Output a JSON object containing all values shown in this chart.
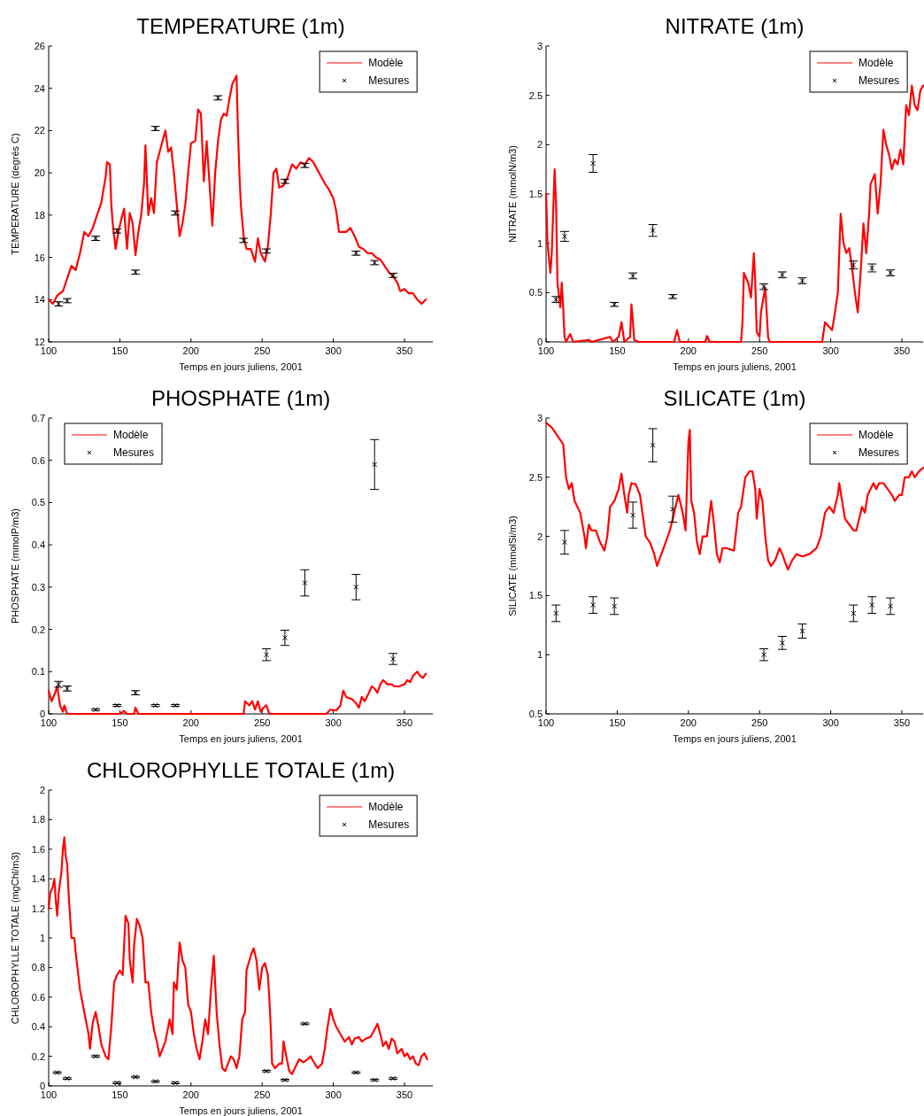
{
  "chart_data": [
    {
      "type": "line",
      "title": "TEMPERATURE (1m)",
      "xlabel": "Temps en jours juliens, 2001",
      "ylabel": "TEMPERATURE (degrés C)",
      "xlim": [
        100,
        370
      ],
      "xticks": [
        100,
        150,
        200,
        250,
        300,
        350
      ],
      "ylim": [
        12,
        26
      ],
      "yticks": [
        12,
        14,
        16,
        18,
        20,
        22,
        24,
        26
      ],
      "legend": "top right",
      "series": [
        {
          "name": "Modèle",
          "type": "line",
          "color": "#ff0000",
          "x": [
            100,
            103,
            106,
            110,
            113,
            116,
            119,
            122,
            125,
            128,
            131,
            134,
            137,
            140,
            141,
            143,
            144,
            145,
            147,
            149,
            151,
            153,
            155,
            157,
            159,
            161,
            163,
            165,
            167,
            168,
            170,
            172,
            174,
            176,
            178,
            180,
            182,
            184,
            186,
            188,
            190,
            192,
            194,
            196,
            198,
            200,
            203,
            205,
            207,
            209,
            211,
            213,
            215,
            217,
            219,
            221,
            223,
            225,
            227,
            229,
            232,
            233,
            234,
            235,
            237,
            239,
            242,
            245,
            247,
            249,
            252,
            254,
            256,
            258,
            260,
            262,
            265,
            268,
            271,
            274,
            277,
            280,
            283,
            286,
            290,
            294,
            297,
            300,
            302,
            304,
            306,
            309,
            312,
            315,
            318,
            321,
            324,
            327,
            330,
            333,
            336,
            339,
            342,
            345,
            347,
            350,
            353,
            356,
            359,
            362,
            365
          ],
          "values": [
            14.0,
            13.8,
            14.2,
            14.4,
            15.0,
            15.6,
            15.4,
            16.2,
            17.2,
            17.0,
            17.4,
            18.0,
            18.6,
            19.8,
            20.5,
            20.4,
            18.5,
            17.6,
            16.4,
            17.2,
            17.8,
            18.3,
            16.4,
            18.1,
            17.6,
            16.1,
            17.2,
            18.0,
            19.5,
            21.3,
            18.0,
            18.8,
            18.1,
            20.5,
            21.0,
            21.5,
            22.0,
            21.0,
            21.2,
            20.0,
            18.5,
            17.0,
            17.6,
            18.5,
            20.0,
            21.4,
            21.5,
            23.0,
            22.8,
            19.6,
            21.5,
            19.5,
            17.5,
            20.0,
            21.5,
            22.5,
            22.8,
            22.7,
            23.5,
            24.2,
            24.6,
            22.0,
            20.0,
            18.5,
            17.0,
            16.4,
            16.4,
            15.8,
            16.9,
            16.2,
            15.8,
            16.5,
            18.0,
            20.0,
            20.2,
            19.3,
            19.4,
            19.8,
            20.4,
            20.2,
            20.5,
            20.4,
            20.7,
            20.5,
            20.0,
            19.5,
            19.2,
            18.8,
            18.2,
            17.2,
            17.2,
            17.2,
            17.4,
            17.0,
            16.5,
            16.4,
            16.2,
            16.2,
            16.0,
            15.9,
            15.6,
            15.3,
            15.1,
            14.8,
            14.4,
            14.5,
            14.3,
            14.3,
            14.0,
            13.8,
            14.0
          ]
        },
        {
          "name": "Mesures",
          "type": "scatter",
          "marker": "cross",
          "color": "#000000",
          "x": [
            107,
            113,
            133,
            148,
            161,
            175,
            189,
            219,
            237,
            253,
            266,
            280,
            316,
            329,
            342
          ],
          "values": [
            13.8,
            13.95,
            16.9,
            17.25,
            15.3,
            22.1,
            18.1,
            23.55,
            16.8,
            16.3,
            19.6,
            20.35,
            16.2,
            15.75,
            15.15
          ],
          "errors": [
            0.1,
            0.1,
            0.1,
            0.1,
            0.1,
            0.1,
            0.1,
            0.1,
            0.1,
            0.1,
            0.1,
            0.1,
            0.1,
            0.1,
            0.1
          ]
        }
      ]
    },
    {
      "type": "line",
      "title": "NITRATE (1m)",
      "xlabel": "Temps en jours juliens, 2001",
      "ylabel": "NITRATE (mmolN/m3)",
      "xlim": [
        100,
        365
      ],
      "xticks": [
        100,
        150,
        200,
        250,
        300,
        350
      ],
      "ylim": [
        0,
        3
      ],
      "yticks": [
        0,
        0.5,
        1,
        1.5,
        2,
        2.5,
        3
      ],
      "legend": "top right",
      "series": [
        {
          "name": "Modèle",
          "type": "line",
          "color": "#ff0000",
          "x": [
            100,
            101,
            103,
            104,
            106,
            107,
            108,
            110,
            111,
            112,
            113,
            114,
            117,
            119,
            130,
            132,
            145,
            147,
            151,
            153,
            155,
            159,
            160,
            162,
            165,
            190,
            192,
            194,
            212,
            213,
            215,
            237,
            238,
            239,
            242,
            244,
            246,
            247,
            248,
            250,
            251,
            254,
            256,
            257,
            294,
            296,
            299,
            301,
            303,
            305,
            307,
            309,
            311,
            313,
            315,
            317,
            319,
            321,
            323,
            325,
            327,
            328,
            331,
            333,
            335,
            337,
            339,
            341,
            343,
            345,
            347,
            349,
            351,
            353,
            355,
            357,
            359,
            361,
            363,
            365
          ],
          "values": [
            1.5,
            1.0,
            0.7,
            0.9,
            1.75,
            1.4,
            0.6,
            0.35,
            0.6,
            0.35,
            0.05,
            0,
            0.08,
            0,
            0.02,
            0,
            0.05,
            0,
            0.05,
            0.2,
            0,
            0.05,
            0.38,
            0.02,
            0,
            0,
            0.12,
            0,
            0,
            0.06,
            0,
            0,
            0.2,
            0.7,
            0.6,
            0.45,
            0.9,
            0.6,
            0.1,
            0.05,
            0.3,
            0.55,
            0.05,
            0,
            0,
            0.2,
            0.15,
            0.12,
            0.3,
            0.5,
            1.3,
            1.0,
            0.9,
            0.95,
            0.75,
            0.5,
            0.3,
            0.7,
            1.2,
            0.9,
            1.3,
            1.6,
            1.7,
            1.3,
            1.6,
            2.15,
            2.0,
            1.9,
            1.75,
            1.85,
            1.8,
            1.95,
            1.8,
            2.4,
            2.3,
            2.6,
            2.4,
            2.35,
            2.55,
            2.6
          ]
        },
        {
          "name": "Mesures",
          "type": "scatter",
          "marker": "cross",
          "color": "#000000",
          "x": [
            107,
            113,
            133,
            148,
            161,
            175,
            189,
            253,
            266,
            280,
            316,
            329,
            342
          ],
          "values": [
            0.43,
            1.07,
            1.81,
            0.38,
            0.67,
            1.13,
            0.46,
            0.56,
            0.68,
            0.62,
            0.78,
            0.75,
            0.7
          ],
          "errors": [
            0.03,
            0.05,
            0.09,
            0.02,
            0.03,
            0.06,
            0.02,
            0.03,
            0.03,
            0.03,
            0.04,
            0.04,
            0.03
          ]
        }
      ]
    },
    {
      "type": "line",
      "title": "PHOSPHATE (1m)",
      "xlabel": "Temps en jours juliens, 2001",
      "ylabel": "PHOSPHATE (mmolP/m3)",
      "xlim": [
        100,
        370
      ],
      "xticks": [
        100,
        150,
        200,
        250,
        300,
        350
      ],
      "ylim": [
        0,
        0.7
      ],
      "yticks": [
        0,
        0.1,
        0.2,
        0.3,
        0.4,
        0.5,
        0.6,
        0.7
      ],
      "legend": "top left",
      "series": [
        {
          "name": "Modèle",
          "type": "line",
          "color": "#ff0000",
          "x": [
            100,
            102,
            104,
            106,
            108,
            110,
            111,
            113,
            150,
            153,
            155,
            160,
            161,
            163,
            237,
            238,
            241,
            243,
            245,
            247,
            249,
            251,
            253,
            255,
            295,
            298,
            302,
            305,
            307,
            309,
            313,
            316,
            318,
            320,
            322,
            325,
            327,
            329,
            331,
            333,
            335,
            338,
            341,
            343,
            346,
            350,
            352,
            354,
            356,
            359,
            361,
            363,
            365
          ],
          "values": [
            0.055,
            0.03,
            0.045,
            0.065,
            0.02,
            0.005,
            0.02,
            0,
            0,
            0.007,
            0,
            0,
            0.015,
            0,
            0,
            0.03,
            0.02,
            0.03,
            0.01,
            0.03,
            0.005,
            0.015,
            0.02,
            0,
            0,
            0.01,
            0.008,
            0.02,
            0.055,
            0.04,
            0.035,
            0.025,
            0.015,
            0.04,
            0.03,
            0.05,
            0.065,
            0.06,
            0.05,
            0.07,
            0.08,
            0.07,
            0.07,
            0.065,
            0.065,
            0.07,
            0.08,
            0.075,
            0.09,
            0.1,
            0.09,
            0.085,
            0.095
          ]
        },
        {
          "name": "Mesures",
          "type": "scatter",
          "marker": "cross",
          "color": "#000000",
          "x": [
            107,
            113,
            133,
            148,
            161,
            175,
            189,
            253,
            266,
            280,
            316,
            329,
            342
          ],
          "values": [
            0.07,
            0.06,
            0.01,
            0.02,
            0.05,
            0.02,
            0.02,
            0.14,
            0.18,
            0.31,
            0.3,
            0.59,
            0.13
          ],
          "errors": [
            0.007,
            0.006,
            0.002,
            0.002,
            0.005,
            0.002,
            0.002,
            0.014,
            0.018,
            0.031,
            0.03,
            0.059,
            0.013
          ]
        }
      ]
    },
    {
      "type": "line",
      "title": "SILICATE (1m)",
      "xlabel": "Temps en jours juliens, 2001",
      "ylabel": "SILICATE (mmolSi/m3)",
      "xlim": [
        100,
        365
      ],
      "xticks": [
        100,
        150,
        200,
        250,
        300,
        350
      ],
      "ylim": [
        0.5,
        3
      ],
      "yticks": [
        0.5,
        1,
        1.5,
        2,
        2.5,
        3
      ],
      "legend": "top right",
      "series": [
        {
          "name": "Modèle",
          "type": "line",
          "color": "#ff0000",
          "x": [
            100,
            104,
            108,
            112,
            114,
            116,
            118,
            120,
            124,
            127,
            128,
            130,
            132,
            135,
            138,
            141,
            143,
            145,
            148,
            151,
            153,
            155,
            157,
            158,
            160,
            163,
            166,
            170,
            173,
            176,
            178,
            181,
            184,
            187,
            190,
            193,
            196,
            198,
            200,
            201,
            202,
            204,
            206,
            208,
            210,
            213,
            216,
            218,
            220,
            222,
            224,
            227,
            232,
            235,
            237,
            240,
            243,
            245,
            247,
            248,
            250,
            252,
            254,
            256,
            258,
            261,
            264,
            266,
            268,
            270,
            273,
            276,
            280,
            285,
            290,
            293,
            296,
            299,
            302,
            305,
            306,
            308,
            310,
            313,
            316,
            318,
            320,
            322,
            324,
            326,
            328,
            330,
            332,
            334,
            337,
            340,
            343,
            345,
            348,
            350,
            352,
            355,
            357,
            359,
            362,
            365
          ],
          "values": [
            2.96,
            2.92,
            2.85,
            2.78,
            2.5,
            2.4,
            2.45,
            2.3,
            2.2,
            2.0,
            1.9,
            2.1,
            2.05,
            2.05,
            1.95,
            1.88,
            2.0,
            2.25,
            2.3,
            2.4,
            2.53,
            2.35,
            2.2,
            2.35,
            2.45,
            2.44,
            2.35,
            2.0,
            1.95,
            1.85,
            1.75,
            1.85,
            1.95,
            2.05,
            2.2,
            2.35,
            2.2,
            2.05,
            2.8,
            2.9,
            2.3,
            2.2,
            1.95,
            1.85,
            2.0,
            2.0,
            2.3,
            2.1,
            1.85,
            1.78,
            1.9,
            1.9,
            1.88,
            2.2,
            2.25,
            2.5,
            2.55,
            2.55,
            2.4,
            2.15,
            2.4,
            2.3,
            2.0,
            1.8,
            1.75,
            1.8,
            1.9,
            1.85,
            1.78,
            1.72,
            1.8,
            1.85,
            1.83,
            1.85,
            1.9,
            2.0,
            2.2,
            2.25,
            2.2,
            2.35,
            2.45,
            2.3,
            2.15,
            2.1,
            2.05,
            2.05,
            2.15,
            2.25,
            2.2,
            2.35,
            2.4,
            2.45,
            2.4,
            2.45,
            2.45,
            2.4,
            2.35,
            2.3,
            2.35,
            2.35,
            2.5,
            2.5,
            2.55,
            2.5,
            2.55,
            2.58
          ]
        },
        {
          "name": "Mesures",
          "type": "scatter",
          "marker": "cross",
          "color": "#000000",
          "x": [
            107,
            113,
            133,
            148,
            161,
            175,
            189,
            253,
            266,
            280,
            316,
            329,
            342
          ],
          "values": [
            1.35,
            1.95,
            1.42,
            1.41,
            2.18,
            2.77,
            2.23,
            1.0,
            1.1,
            1.2,
            1.35,
            1.42,
            1.41
          ],
          "errors": [
            0.07,
            0.1,
            0.07,
            0.07,
            0.11,
            0.14,
            0.11,
            0.05,
            0.055,
            0.06,
            0.07,
            0.07,
            0.07
          ]
        }
      ]
    },
    {
      "type": "line",
      "title": "CHLOROPHYLLE TOTALE (1m)",
      "xlabel": "Temps en jours juliens, 2001",
      "ylabel": "CHLOROPHYLLE TOTALE (mgChl/m3)",
      "xlim": [
        100,
        370
      ],
      "xticks": [
        100,
        150,
        200,
        250,
        300,
        350
      ],
      "ylim": [
        0,
        2
      ],
      "yticks": [
        0,
        0.2,
        0.4,
        0.6,
        0.8,
        1,
        1.2,
        1.4,
        1.6,
        1.8,
        2
      ],
      "legend": "top right",
      "series": [
        {
          "name": "Modèle",
          "type": "line",
          "color": "#ff0000",
          "x": [
            100,
            101,
            103,
            104,
            105,
            106,
            107,
            109,
            110,
            111,
            112,
            113,
            114,
            116,
            118,
            119,
            122,
            125,
            128,
            129,
            131,
            133,
            135,
            137,
            140,
            142,
            144,
            146,
            148,
            150,
            152,
            154,
            156,
            157,
            159,
            160,
            162,
            164,
            166,
            168,
            170,
            172,
            174,
            176,
            178,
            180,
            182,
            185,
            187,
            188,
            190,
            192,
            194,
            196,
            198,
            200,
            202,
            204,
            206,
            208,
            210,
            212,
            214,
            216,
            218,
            220,
            222,
            224,
            226,
            228,
            230,
            232,
            234,
            236,
            238,
            239,
            242,
            244,
            246,
            248,
            250,
            252,
            254,
            255,
            256,
            257,
            259,
            262,
            264,
            265,
            267,
            269,
            271,
            273,
            276,
            279,
            282,
            284,
            287,
            289,
            292,
            294,
            296,
            298,
            300,
            302,
            305,
            308,
            311,
            313,
            315,
            318,
            320,
            323,
            326,
            329,
            331,
            333,
            335,
            337,
            339,
            341,
            343,
            345,
            348,
            350,
            352,
            354,
            356,
            358,
            360,
            362,
            364,
            366
          ],
          "values": [
            1.2,
            1.3,
            1.35,
            1.4,
            1.25,
            1.15,
            1.3,
            1.45,
            1.6,
            1.68,
            1.55,
            1.5,
            1.3,
            1.0,
            1.0,
            0.9,
            0.65,
            0.5,
            0.35,
            0.25,
            0.43,
            0.5,
            0.4,
            0.28,
            0.2,
            0.18,
            0.4,
            0.7,
            0.75,
            0.78,
            0.75,
            1.15,
            1.1,
            0.85,
            0.7,
            0.95,
            1.13,
            1.08,
            1.0,
            0.7,
            0.7,
            0.5,
            0.38,
            0.3,
            0.2,
            0.25,
            0.3,
            0.45,
            0.35,
            0.7,
            0.65,
            0.97,
            0.85,
            0.8,
            0.55,
            0.5,
            0.35,
            0.25,
            0.18,
            0.3,
            0.45,
            0.35,
            0.65,
            0.88,
            0.5,
            0.28,
            0.12,
            0.1,
            0.15,
            0.2,
            0.18,
            0.12,
            0.2,
            0.45,
            0.5,
            0.78,
            0.88,
            0.93,
            0.85,
            0.65,
            0.8,
            0.83,
            0.75,
            0.6,
            0.4,
            0.15,
            0.12,
            0.15,
            0.15,
            0.3,
            0.2,
            0.1,
            0.08,
            0.12,
            0.18,
            0.16,
            0.18,
            0.2,
            0.15,
            0.12,
            0.15,
            0.25,
            0.4,
            0.52,
            0.45,
            0.4,
            0.35,
            0.3,
            0.33,
            0.28,
            0.32,
            0.33,
            0.3,
            0.32,
            0.33,
            0.38,
            0.42,
            0.35,
            0.27,
            0.3,
            0.25,
            0.32,
            0.3,
            0.22,
            0.25,
            0.2,
            0.22,
            0.18,
            0.2,
            0.15,
            0.14,
            0.2,
            0.22,
            0.18
          ]
        },
        {
          "name": "Mesures",
          "type": "scatter",
          "marker": "cross",
          "color": "#000000",
          "x": [
            106,
            113,
            133,
            148,
            161,
            175,
            189,
            253,
            266,
            280,
            316,
            329,
            342
          ],
          "values": [
            0.09,
            0.05,
            0.2,
            0.02,
            0.06,
            0.03,
            0.02,
            0.1,
            0.04,
            0.42,
            0.09,
            0.04,
            0.05
          ],
          "errors": [
            0.005,
            0.005,
            0.005,
            0.005,
            0.005,
            0.005,
            0.005,
            0.005,
            0.005,
            0.005,
            0.005,
            0.005,
            0.005
          ]
        }
      ]
    }
  ]
}
